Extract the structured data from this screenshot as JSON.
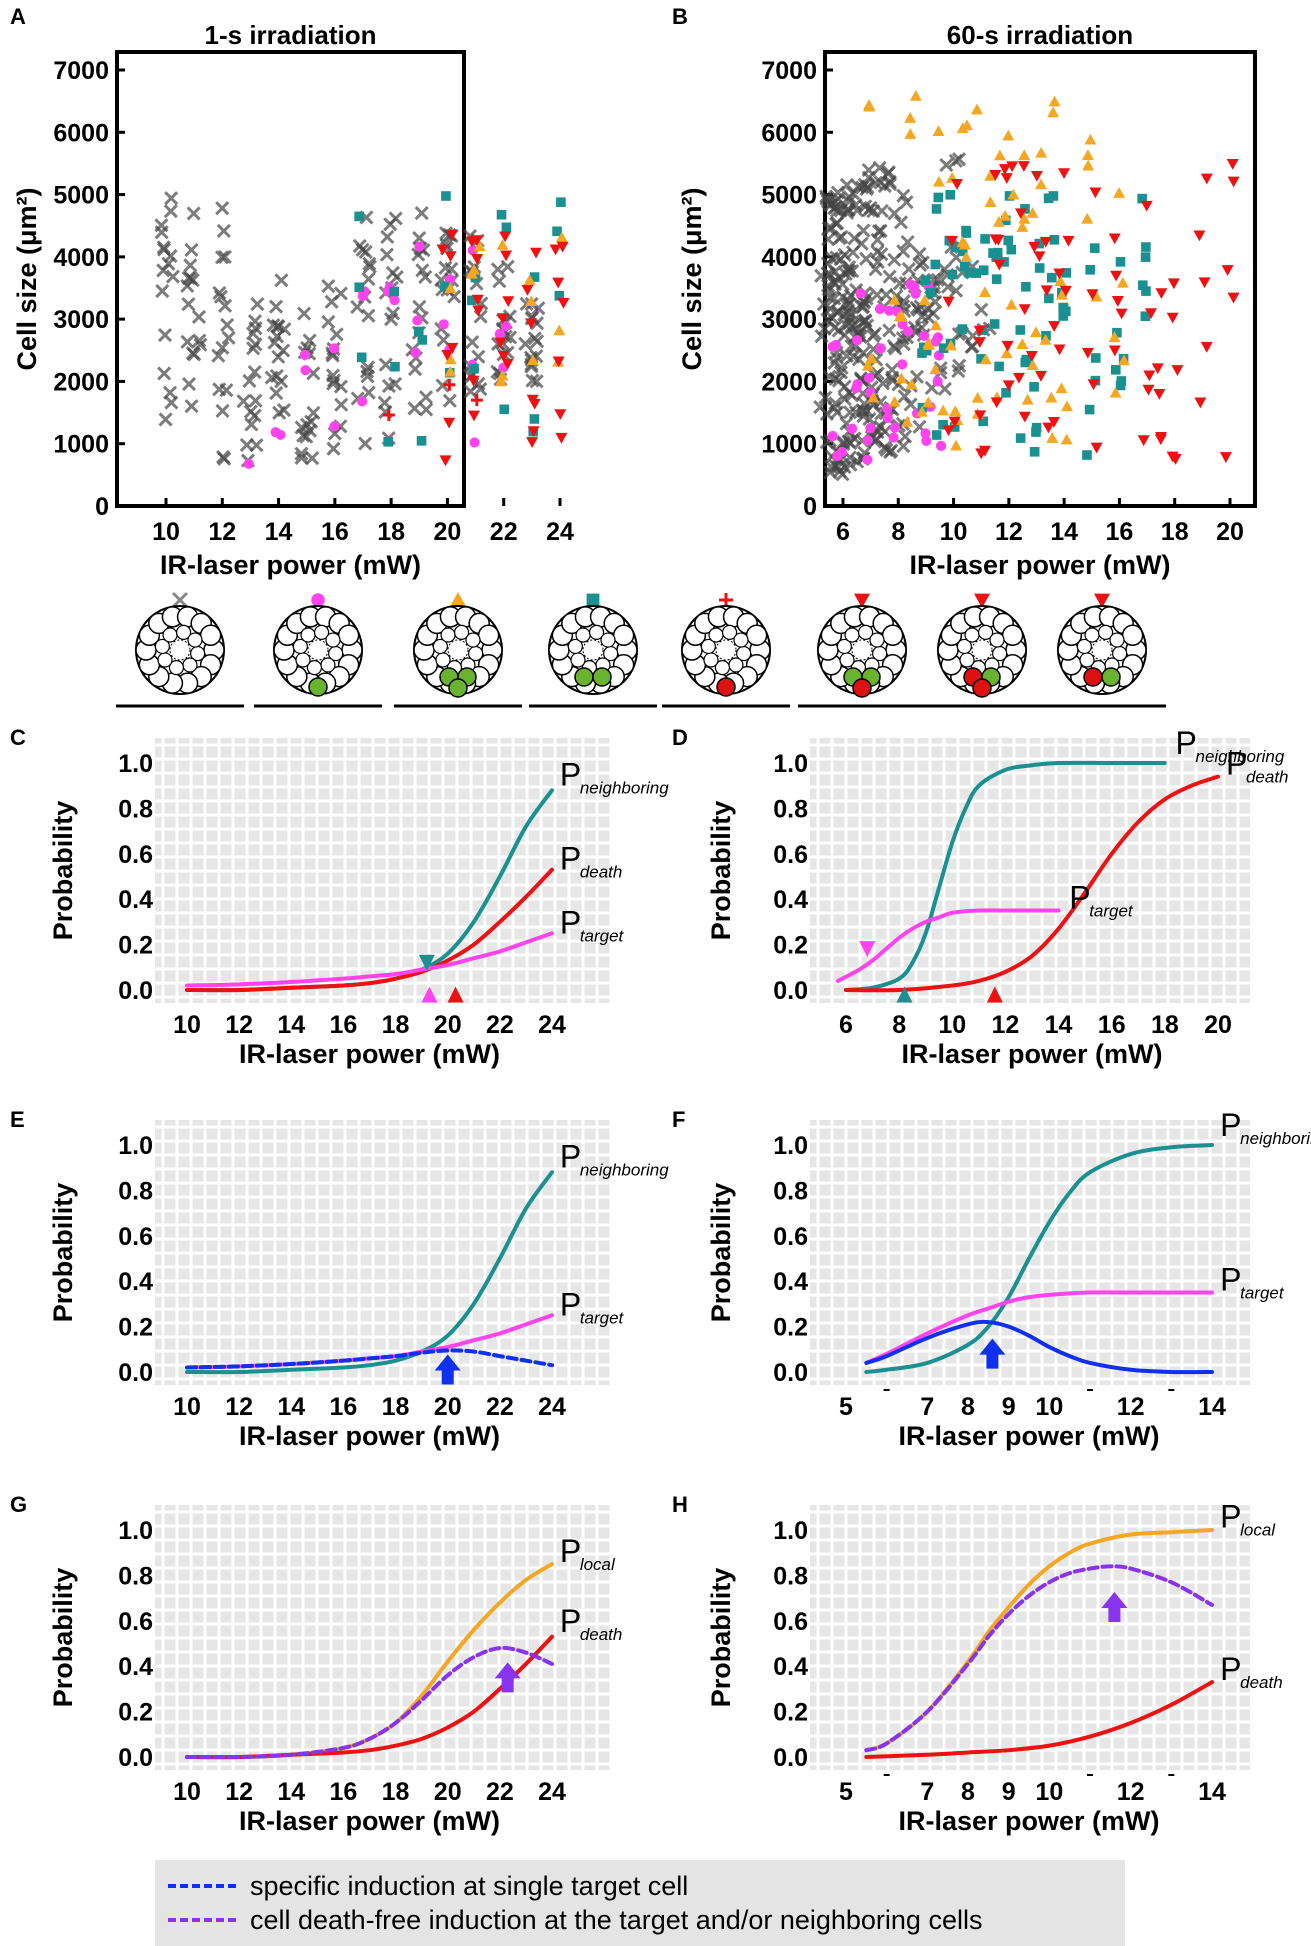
{
  "figure": {
    "panel_labels": [
      "A",
      "B",
      "C",
      "D",
      "E",
      "F",
      "G",
      "H"
    ],
    "colors": {
      "none": "#555555",
      "target": "#ff44ee",
      "local_orange": "#f5a623",
      "neighboring_teal": "#1a9090",
      "death_red": "#ee1111",
      "specific_blue": "#1030ee",
      "deathfree_purple": "#8833ee",
      "grid_bg": "#e6e6e6"
    }
  },
  "chart_data": [
    {
      "id": "A",
      "type": "scatter",
      "title": "1-s irradiation",
      "xlabel": "IR-laser power (mW)",
      "ylabel": "Cell size (μm²)",
      "xlim": [
        9.2,
        24.8
      ],
      "ylim": [
        0,
        7000
      ],
      "xticks": [
        10,
        12,
        14,
        16,
        18,
        20,
        22,
        24
      ],
      "yticks": [
        0,
        1000,
        2000,
        3000,
        4000,
        5000,
        6000,
        7000
      ],
      "grid": false,
      "categories_summary": {
        "no_response_x": "gray crosses at every power 10–23 mW, sizes ~500–5400",
        "target_circle": "magenta dots 13–22 mW",
        "neighbor_square": "teal squares 17–24 mW",
        "local_triangle": "orange triangles 20–24 mW",
        "death_cross": "red plus 18–21 mW",
        "death_triangle": "red down-triangles 20–24 mW"
      }
    },
    {
      "id": "B",
      "type": "scatter",
      "title": "60-s irradiation",
      "xlabel": "IR-laser power (mW)",
      "ylabel": "Cell size (μm²)",
      "xlim": [
        5,
        21
      ],
      "ylim": [
        0,
        7000
      ],
      "xticks": [
        6,
        8,
        10,
        12,
        14,
        16,
        18,
        20
      ],
      "yticks": [
        0,
        1000,
        2000,
        3000,
        4000,
        5000,
        6000,
        7000
      ],
      "grid": false
    },
    {
      "id": "C",
      "type": "line",
      "xlabel": "IR-laser power (mW)",
      "ylabel": "Probability",
      "xlim": [
        9.2,
        24.8
      ],
      "ylim": [
        -0.05,
        1.05
      ],
      "xticks": [
        10,
        12,
        14,
        16,
        18,
        20,
        22,
        24
      ],
      "yticks": [
        "0.0",
        "0.2",
        "0.4",
        "0.6",
        "0.8",
        "1.0"
      ],
      "grid": true,
      "series": [
        {
          "name": "neighboring",
          "color": "neighboring_teal",
          "x": [
            10,
            12,
            14,
            16,
            17,
            18,
            19,
            20,
            21,
            22,
            23,
            24
          ],
          "y": [
            0.0,
            0.0,
            0.01,
            0.02,
            0.03,
            0.05,
            0.09,
            0.16,
            0.3,
            0.5,
            0.72,
            0.88
          ]
        },
        {
          "name": "death",
          "color": "death_red",
          "x": [
            10,
            12,
            14,
            16,
            17,
            18,
            19,
            20,
            21,
            22,
            23,
            24
          ],
          "y": [
            0.0,
            0.0,
            0.01,
            0.02,
            0.03,
            0.05,
            0.08,
            0.13,
            0.2,
            0.3,
            0.41,
            0.53
          ]
        },
        {
          "name": "target",
          "color": "target",
          "x": [
            10,
            12,
            14,
            16,
            17,
            18,
            19,
            20,
            21,
            22,
            23,
            24
          ],
          "y": [
            0.02,
            0.025,
            0.035,
            0.05,
            0.06,
            0.07,
            0.09,
            0.11,
            0.14,
            0.17,
            0.21,
            0.25
          ]
        }
      ],
      "markers": [
        {
          "x": 19.2,
          "y": 0.12,
          "dir": "down",
          "color": "neighboring_teal"
        },
        {
          "x": 19.3,
          "y": -0.02,
          "dir": "up",
          "color": "target"
        },
        {
          "x": 20.3,
          "y": -0.02,
          "dir": "up",
          "color": "death_red"
        }
      ],
      "labels": [
        {
          "big": "P",
          "sub": "neighboring",
          "x": 24.3,
          "y": 0.9
        },
        {
          "big": "P",
          "sub": "death",
          "x": 24.3,
          "y": 0.53
        },
        {
          "big": "P",
          "sub": "target",
          "x": 24.3,
          "y": 0.25
        }
      ]
    },
    {
      "id": "D",
      "type": "line",
      "xlabel": "IR-laser power (mW)",
      "ylabel": "Probability",
      "xlim": [
        5,
        21
      ],
      "ylim": [
        -0.05,
        1.05
      ],
      "xticks": [
        6,
        8,
        10,
        12,
        14,
        16,
        18,
        20
      ],
      "yticks": [
        "0.0",
        "0.2",
        "0.4",
        "0.6",
        "0.8",
        "1.0"
      ],
      "grid": true,
      "series": [
        {
          "name": "neighboring",
          "color": "neighboring_teal",
          "x": [
            6,
            7,
            8,
            8.5,
            9,
            9.5,
            10,
            10.5,
            11,
            12,
            13,
            14,
            16,
            18
          ],
          "y": [
            0.0,
            0.01,
            0.05,
            0.12,
            0.25,
            0.45,
            0.65,
            0.8,
            0.9,
            0.97,
            0.99,
            1.0,
            1.0,
            1.0
          ]
        },
        {
          "name": "death",
          "color": "death_red",
          "x": [
            6,
            8,
            10,
            11,
            12,
            13,
            14,
            15,
            16,
            17,
            18,
            19,
            20
          ],
          "y": [
            0.0,
            0.0,
            0.02,
            0.04,
            0.08,
            0.15,
            0.27,
            0.43,
            0.6,
            0.74,
            0.84,
            0.9,
            0.94
          ]
        },
        {
          "name": "target",
          "color": "target",
          "x": [
            5.7,
            6.5,
            7,
            7.5,
            8,
            8.5,
            9,
            9.5,
            10,
            11,
            12,
            13,
            14
          ],
          "y": [
            0.04,
            0.09,
            0.13,
            0.18,
            0.23,
            0.27,
            0.3,
            0.32,
            0.34,
            0.35,
            0.35,
            0.35,
            0.35
          ]
        }
      ],
      "markers": [
        {
          "x": 6.8,
          "y": 0.18,
          "dir": "down",
          "color": "target"
        },
        {
          "x": 8.2,
          "y": -0.02,
          "dir": "up",
          "color": "neighboring_teal"
        },
        {
          "x": 11.6,
          "y": -0.02,
          "dir": "up",
          "color": "death_red"
        }
      ],
      "labels": [
        {
          "big": "P",
          "sub": "neighboring",
          "x": 18.4,
          "y": 1.04
        },
        {
          "big": "P",
          "sub": "death",
          "x": 20.3,
          "y": 0.95
        },
        {
          "big": "P",
          "sub": "target",
          "x": 14.4,
          "y": 0.36
        }
      ]
    },
    {
      "id": "E",
      "type": "line",
      "xlabel": "IR-laser power (mW)",
      "ylabel": "Probability",
      "xlim": [
        9.2,
        24.8
      ],
      "ylim": [
        -0.05,
        1.05
      ],
      "xticks": [
        10,
        12,
        14,
        16,
        18,
        20,
        22,
        24
      ],
      "yticks": [
        "0.0",
        "0.2",
        "0.4",
        "0.6",
        "0.8",
        "1.0"
      ],
      "grid": true,
      "series": [
        {
          "name": "neighboring",
          "color": "neighboring_teal",
          "x": [
            10,
            12,
            14,
            16,
            17,
            18,
            19,
            20,
            21,
            22,
            23,
            24
          ],
          "y": [
            0.0,
            0.0,
            0.01,
            0.02,
            0.03,
            0.05,
            0.09,
            0.16,
            0.3,
            0.5,
            0.72,
            0.88
          ]
        },
        {
          "name": "target",
          "color": "target",
          "x": [
            10,
            12,
            14,
            16,
            17,
            18,
            19,
            20,
            21,
            22,
            23,
            24
          ],
          "y": [
            0.02,
            0.025,
            0.035,
            0.05,
            0.06,
            0.07,
            0.09,
            0.11,
            0.14,
            0.17,
            0.21,
            0.25
          ]
        },
        {
          "name": "specific",
          "color": "specific_blue",
          "dashed": true,
          "x": [
            10,
            12,
            14,
            16,
            17,
            18,
            19,
            20,
            21,
            22,
            23,
            24
          ],
          "y": [
            0.02,
            0.025,
            0.035,
            0.05,
            0.06,
            0.07,
            0.085,
            0.095,
            0.09,
            0.07,
            0.05,
            0.03
          ]
        }
      ],
      "arrows": [
        {
          "x": 20.0,
          "y": -0.02,
          "color": "specific_blue"
        }
      ],
      "labels": [
        {
          "big": "P",
          "sub": "neighboring",
          "x": 24.3,
          "y": 0.9
        },
        {
          "big": "P",
          "sub": "target",
          "x": 24.3,
          "y": 0.25
        }
      ]
    },
    {
      "id": "F",
      "type": "line",
      "xlabel": "IR-laser power (mW)",
      "ylabel": "Probability",
      "xlim": [
        4.2,
        14.8
      ],
      "ylim": [
        -0.05,
        1.05
      ],
      "xticks": [
        5,
        6,
        7,
        8,
        9,
        10,
        11,
        12,
        13,
        14
      ],
      "xticklabels": [
        "5",
        "",
        "7",
        "8",
        "9",
        "10",
        "",
        "12",
        "",
        "14"
      ],
      "yticks": [
        "0.0",
        "0.2",
        "0.4",
        "0.6",
        "0.8",
        "1.0"
      ],
      "grid": true,
      "series": [
        {
          "name": "neighboring",
          "color": "neighboring_teal",
          "x": [
            5.5,
            6,
            7,
            8,
            8.5,
            9,
            9.5,
            10,
            10.5,
            11,
            12,
            13,
            14
          ],
          "y": [
            0.0,
            0.01,
            0.04,
            0.12,
            0.2,
            0.33,
            0.5,
            0.66,
            0.79,
            0.88,
            0.96,
            0.99,
            1.0
          ]
        },
        {
          "name": "target",
          "color": "target",
          "x": [
            5.5,
            6,
            7,
            8,
            8.5,
            9,
            9.5,
            10,
            11,
            12,
            13,
            14
          ],
          "y": [
            0.04,
            0.08,
            0.17,
            0.25,
            0.28,
            0.31,
            0.33,
            0.34,
            0.35,
            0.35,
            0.35,
            0.35
          ]
        },
        {
          "name": "specific",
          "color": "specific_blue",
          "x": [
            5.5,
            6,
            7,
            8,
            8.5,
            9,
            9.5,
            10,
            10.5,
            11,
            12,
            13,
            14
          ],
          "y": [
            0.04,
            0.07,
            0.15,
            0.21,
            0.22,
            0.2,
            0.16,
            0.11,
            0.07,
            0.04,
            0.01,
            0.0,
            0.0
          ]
        }
      ],
      "arrows": [
        {
          "x": 8.6,
          "y": 0.05,
          "color": "specific_blue"
        }
      ],
      "labels": [
        {
          "big": "P",
          "sub": "neighboring",
          "x": 14.2,
          "y": 1.04
        },
        {
          "big": "P",
          "sub": "target",
          "x": 14.2,
          "y": 0.36
        }
      ]
    },
    {
      "id": "G",
      "type": "line",
      "xlabel": "IR-laser power (mW)",
      "ylabel": "Probability",
      "xlim": [
        9.2,
        24.8
      ],
      "ylim": [
        -0.05,
        1.05
      ],
      "xticks": [
        10,
        12,
        14,
        16,
        18,
        20,
        22,
        24
      ],
      "yticks": [
        "0.0",
        "0.2",
        "0.4",
        "0.6",
        "0.8",
        "1.0"
      ],
      "grid": true,
      "series": [
        {
          "name": "local",
          "color": "local_orange",
          "x": [
            10,
            12,
            14,
            16,
            17,
            18,
            19,
            20,
            21,
            22,
            23,
            24
          ],
          "y": [
            0.0,
            0.0,
            0.01,
            0.04,
            0.08,
            0.15,
            0.27,
            0.42,
            0.56,
            0.68,
            0.78,
            0.85
          ]
        },
        {
          "name": "death",
          "color": "death_red",
          "x": [
            10,
            12,
            14,
            16,
            17,
            18,
            19,
            20,
            21,
            22,
            23,
            24
          ],
          "y": [
            0.0,
            0.0,
            0.01,
            0.02,
            0.03,
            0.05,
            0.08,
            0.13,
            0.2,
            0.3,
            0.41,
            0.53
          ]
        },
        {
          "name": "deathfree",
          "color": "deathfree_purple",
          "dashed": true,
          "x": [
            10,
            12,
            14,
            16,
            17,
            18,
            19,
            20,
            21,
            22,
            23,
            24
          ],
          "y": [
            0.0,
            0.0,
            0.01,
            0.04,
            0.08,
            0.15,
            0.25,
            0.36,
            0.44,
            0.48,
            0.46,
            0.41
          ]
        }
      ],
      "arrows": [
        {
          "x": 22.3,
          "y": 0.32,
          "color": "deathfree_purple"
        }
      ],
      "labels": [
        {
          "big": "P",
          "sub": "local",
          "x": 24.3,
          "y": 0.86
        },
        {
          "big": "P",
          "sub": "death",
          "x": 24.3,
          "y": 0.55
        }
      ]
    },
    {
      "id": "H",
      "type": "line",
      "xlabel": "IR-laser power (mW)",
      "ylabel": "Probability",
      "xlim": [
        4.2,
        14.8
      ],
      "ylim": [
        -0.05,
        1.05
      ],
      "xticks": [
        5,
        6,
        7,
        8,
        9,
        10,
        11,
        12,
        13,
        14
      ],
      "xticklabels": [
        "5",
        "",
        "7",
        "8",
        "9",
        "10",
        "",
        "12",
        "",
        "14"
      ],
      "yticks": [
        "0.0",
        "0.2",
        "0.4",
        "0.6",
        "0.8",
        "1.0"
      ],
      "grid": true,
      "series": [
        {
          "name": "local",
          "color": "local_orange",
          "x": [
            5.5,
            6,
            7,
            8,
            8.5,
            9,
            9.5,
            10,
            10.5,
            11,
            12,
            13,
            14
          ],
          "y": [
            0.03,
            0.06,
            0.2,
            0.42,
            0.55,
            0.66,
            0.76,
            0.84,
            0.9,
            0.94,
            0.98,
            0.99,
            1.0
          ]
        },
        {
          "name": "death",
          "color": "death_red",
          "x": [
            5.5,
            7,
            8,
            9,
            10,
            11,
            12,
            13,
            14
          ],
          "y": [
            0.0,
            0.01,
            0.02,
            0.03,
            0.05,
            0.09,
            0.15,
            0.23,
            0.33
          ]
        },
        {
          "name": "deathfree",
          "color": "deathfree_purple",
          "dashed": true,
          "x": [
            5.5,
            6,
            7,
            8,
            8.5,
            9,
            9.5,
            10,
            10.5,
            11,
            11.5,
            12,
            13,
            14
          ],
          "y": [
            0.03,
            0.06,
            0.2,
            0.41,
            0.53,
            0.63,
            0.71,
            0.77,
            0.81,
            0.83,
            0.84,
            0.83,
            0.77,
            0.67
          ]
        }
      ],
      "arrows": [
        {
          "x": 11.6,
          "y": 0.63,
          "color": "deathfree_purple"
        }
      ],
      "labels": [
        {
          "big": "P",
          "sub": "local",
          "x": 14.2,
          "y": 1.01
        },
        {
          "big": "P",
          "sub": "death",
          "x": 14.2,
          "y": 0.34
        }
      ]
    }
  ],
  "schematic": [
    {
      "symbol": "cross",
      "color": "none",
      "state": "none"
    },
    {
      "symbol": "circle",
      "color": "target",
      "state": "target"
    },
    {
      "symbol": "triangle",
      "color": "local_orange",
      "state": "target+neighbor"
    },
    {
      "symbol": "square",
      "color": "neighboring_teal",
      "state": "neighbor"
    },
    {
      "symbol": "plus",
      "color": "death_red",
      "state": "death"
    },
    {
      "symbol": "triangle-down",
      "color": "death_red",
      "state": "neighbor+death"
    },
    {
      "symbol": "triangle-down",
      "color": "death_red",
      "state": "partial-death"
    },
    {
      "symbol": "triangle-down",
      "color": "death_red",
      "state": "target-death"
    }
  ],
  "legend": {
    "items": [
      {
        "label": "specific induction at single target cell",
        "color": "specific_blue"
      },
      {
        "label": "cell death-free induction at the target and/or neighboring cells",
        "color": "deathfree_purple"
      }
    ]
  }
}
